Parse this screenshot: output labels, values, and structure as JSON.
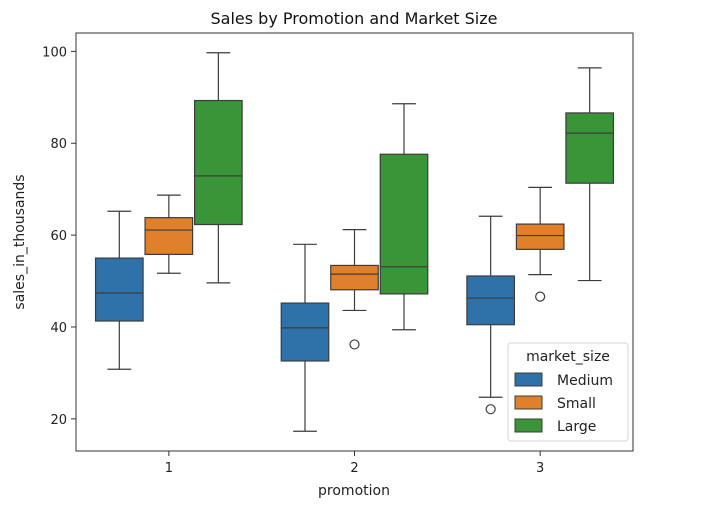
{
  "chart_data": {
    "type": "box",
    "title": "Sales by Promotion and Market Size",
    "xlabel": "promotion",
    "ylabel": "sales_in_thousands",
    "categories": [
      "1",
      "2",
      "3"
    ],
    "ylim": [
      13,
      104
    ],
    "yticks": [
      20,
      40,
      60,
      80,
      100
    ],
    "legend": {
      "title": "market_size",
      "placement": "bottom-right"
    },
    "series": [
      {
        "name": "Medium",
        "color": "#2f72aa",
        "boxes": [
          {
            "whisker_low": 30.8,
            "q1": 41.3,
            "median": 47.4,
            "q3": 55.0,
            "whisker_high": 65.2,
            "outliers": []
          },
          {
            "whisker_low": 17.3,
            "q1": 32.6,
            "median": 39.8,
            "q3": 45.2,
            "whisker_high": 58.0,
            "outliers": []
          },
          {
            "whisker_low": 24.7,
            "q1": 40.5,
            "median": 46.3,
            "q3": 51.1,
            "whisker_high": 64.1,
            "outliers": [
              22.1
            ]
          }
        ]
      },
      {
        "name": "Small",
        "color": "#e1802a",
        "boxes": [
          {
            "whisker_low": 51.7,
            "q1": 55.8,
            "median": 61.1,
            "q3": 63.8,
            "whisker_high": 68.7,
            "outliers": []
          },
          {
            "whisker_low": 43.6,
            "q1": 48.1,
            "median": 51.5,
            "q3": 53.4,
            "whisker_high": 61.2,
            "outliers": [
              36.2
            ]
          },
          {
            "whisker_low": 51.4,
            "q1": 56.9,
            "median": 59.9,
            "q3": 62.4,
            "whisker_high": 70.4,
            "outliers": [
              46.6
            ]
          }
        ]
      },
      {
        "name": "Large",
        "color": "#3a9438",
        "boxes": [
          {
            "whisker_low": 49.6,
            "q1": 62.3,
            "median": 72.9,
            "q3": 89.3,
            "whisker_high": 99.7,
            "outliers": []
          },
          {
            "whisker_low": 39.4,
            "q1": 47.2,
            "median": 53.1,
            "q3": 77.6,
            "whisker_high": 88.6,
            "outliers": []
          },
          {
            "whisker_low": 50.1,
            "q1": 71.3,
            "median": 82.2,
            "q3": 86.6,
            "whisker_high": 96.4,
            "outliers": []
          }
        ]
      }
    ]
  }
}
